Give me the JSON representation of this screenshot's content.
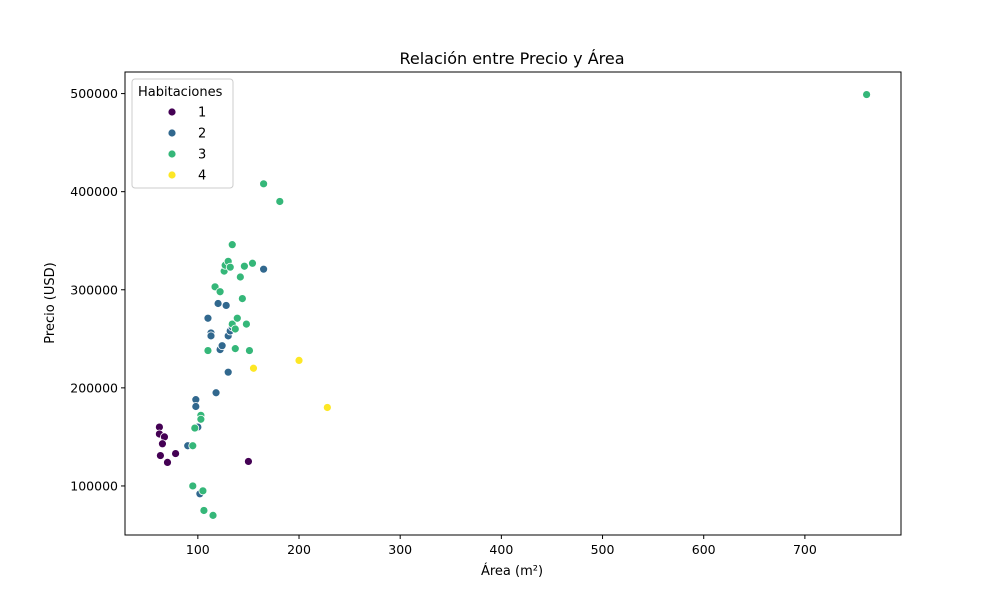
{
  "chart_data": {
    "type": "scatter",
    "title": "Relación entre Precio y Área",
    "xlabel": "Área (m²)",
    "ylabel": "Precio (USD)",
    "xlim": [
      28,
      795
    ],
    "ylim": [
      50000,
      522000
    ],
    "xticks": [
      100,
      200,
      300,
      400,
      500,
      600,
      700
    ],
    "yticks": [
      100000,
      200000,
      300000,
      400000,
      500000
    ],
    "grid": false,
    "legend": {
      "title": "Habitaciones",
      "position": "top-left"
    },
    "series": [
      {
        "name": "1",
        "color": "#440154",
        "points": [
          [
            62,
            160000
          ],
          [
            62,
            153000
          ],
          [
            67,
            150000
          ],
          [
            65,
            143000
          ],
          [
            63,
            131000
          ],
          [
            70,
            124000
          ],
          [
            78,
            133000
          ],
          [
            150,
            125000
          ]
        ]
      },
      {
        "name": "2",
        "color": "#31688e",
        "points": [
          [
            90,
            141000
          ],
          [
            98,
            188000
          ],
          [
            98,
            181000
          ],
          [
            100,
            160000
          ],
          [
            102,
            92000
          ],
          [
            110,
            271000
          ],
          [
            113,
            256000
          ],
          [
            113,
            253000
          ],
          [
            118,
            195000
          ],
          [
            120,
            286000
          ],
          [
            122,
            239000
          ],
          [
            124,
            243000
          ],
          [
            128,
            284000
          ],
          [
            130,
            253000
          ],
          [
            130,
            216000
          ],
          [
            132,
            258000
          ],
          [
            134,
            262000
          ],
          [
            165,
            321000
          ]
        ]
      },
      {
        "name": "3",
        "color": "#35b779",
        "points": [
          [
            95,
            100000
          ],
          [
            95,
            141000
          ],
          [
            97,
            159000
          ],
          [
            103,
            172000
          ],
          [
            103,
            168000
          ],
          [
            105,
            95000
          ],
          [
            106,
            75000
          ],
          [
            110,
            238000
          ],
          [
            115,
            70000
          ],
          [
            117,
            303000
          ],
          [
            122,
            298000
          ],
          [
            126,
            319000
          ],
          [
            127,
            325000
          ],
          [
            130,
            329000
          ],
          [
            132,
            323000
          ],
          [
            134,
            346000
          ],
          [
            134,
            265000
          ],
          [
            137,
            260000
          ],
          [
            137,
            240000
          ],
          [
            139,
            271000
          ],
          [
            142,
            313000
          ],
          [
            144,
            291000
          ],
          [
            146,
            324000
          ],
          [
            148,
            265000
          ],
          [
            151,
            238000
          ],
          [
            154,
            327000
          ],
          [
            165,
            408000
          ],
          [
            181,
            390000
          ],
          [
            761,
            499000
          ]
        ]
      },
      {
        "name": "4",
        "color": "#fde725",
        "points": [
          [
            155,
            220000
          ],
          [
            200,
            228000
          ],
          [
            228,
            180000
          ]
        ]
      }
    ]
  }
}
